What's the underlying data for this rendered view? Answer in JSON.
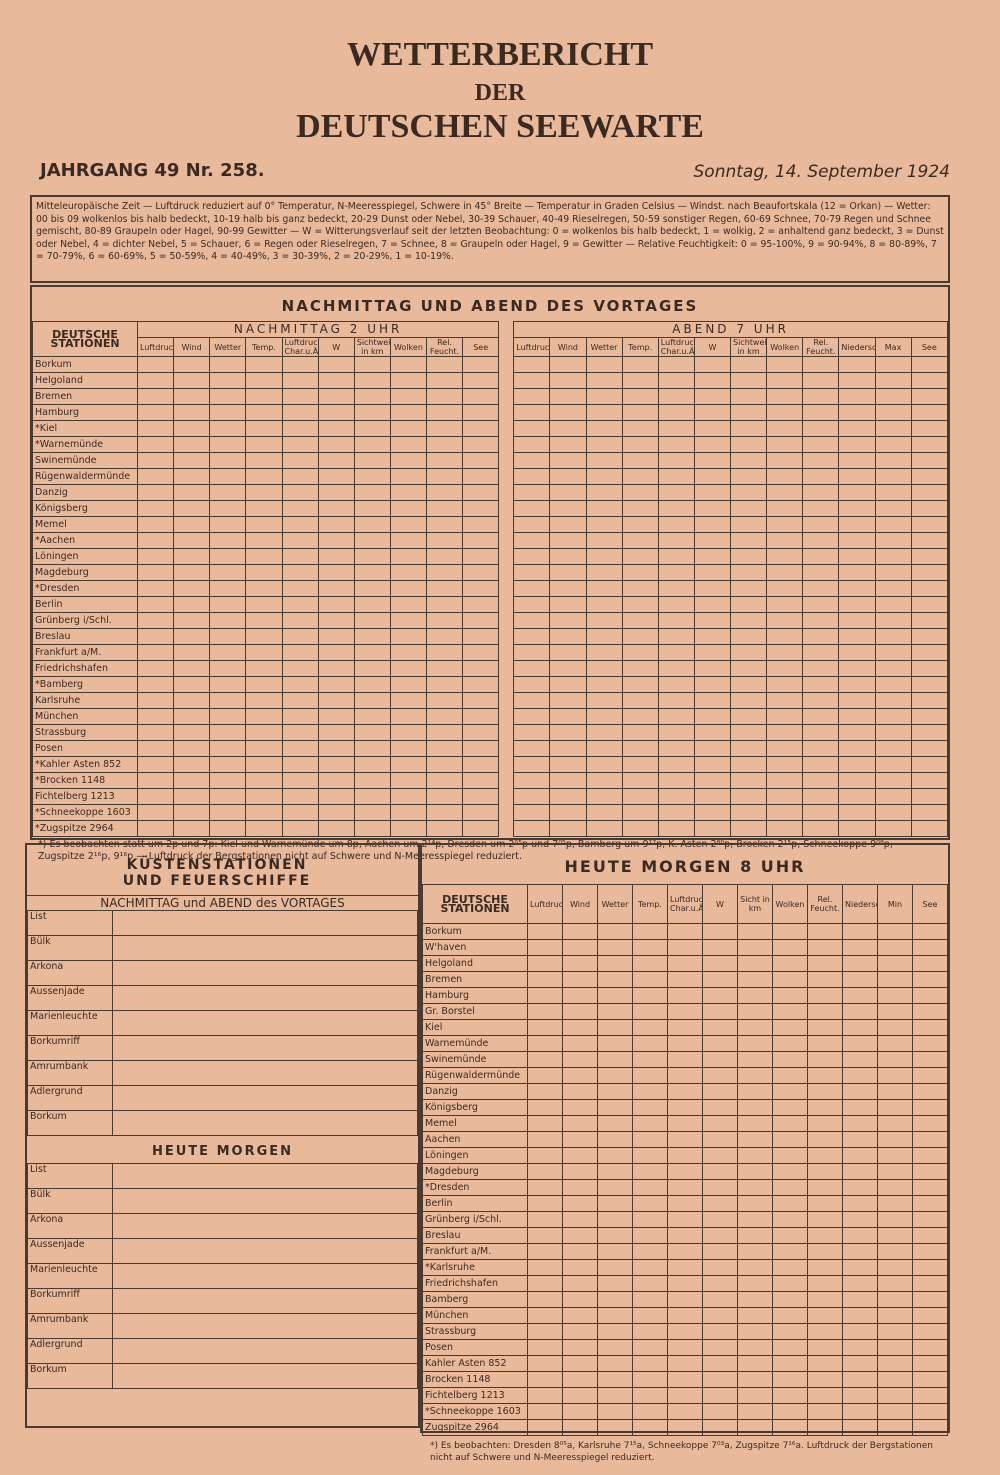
{
  "header": {
    "title": "WETTERBERICHT",
    "subtitle": "DER",
    "title2": "DEUTSCHEN SEEWARTE",
    "issue": "JAHRGANG 49 Nr. 258.",
    "date": "Sonntag, 14. September 1924"
  },
  "legend": "Mitteleuropäische Zeit — Luftdruck reduziert auf 0° Temperatur, N-Meeresspiegel, Schwere in 45° Breite — Temperatur in Graden Celsius — Windst. nach Beaufortskala (12 = Orkan) — Wetter: 00 bis 09 wolkenlos bis halb bedeckt, 10-19 halb bis ganz bedeckt, 20-29 Dunst oder Nebel, 30-39 Schauer, 40-49 Rieselregen, 50-59 sonstiger Regen, 60-69 Schnee, 70-79 Regen und Schnee gemischt, 80-89 Graupeln oder Hagel, 90-99 Gewitter — W = Witterungsverlauf seit der letzten Beobachtung: 0 = wolkenlos bis halb bedeckt, 1 = wolkig, 2 = anhaltend ganz bedeckt, 3 = Dunst oder Nebel, 4 = dichter Nebel, 5 = Schauer, 6 = Regen oder Rieselregen, 7 = Schnee, 8 = Graupeln oder Hagel, 9 = Gewitter — Relative Feuchtigkeit: 0 = 95-100%, 9 = 90-94%, 8 = 80-89%, 7 = 70-79%, 6 = 60-69%, 5 = 50-59%, 4 = 40-49%, 3 = 30-39%, 2 = 20-29%, 1 = 10-19%.",
  "vortag": {
    "title": "NACHMITTAG UND ABEND DES VORTAGES",
    "stations_header": "DEUTSCHE STATIONEN",
    "afternoon": "NACHMITTAG 2 UHR",
    "evening": "ABEND 7 UHR",
    "afternoon_columns": [
      "Luftdruck",
      "Wind",
      "Wetter",
      "Temp.",
      "Luftdruck Char.u.Änd.",
      "W",
      "Sichtweite in km",
      "Wolken",
      "Rel. Feucht.",
      "See"
    ],
    "evening_columns": [
      "Luftdruck",
      "Wind",
      "Wetter",
      "Temp.",
      "Luftdruck Char.u.Änd.",
      "W",
      "Sichtweite in km",
      "Wolken",
      "Rel. Feucht.",
      "Niederschlag",
      "Max",
      "See"
    ],
    "stations": [
      "Borkum",
      "Helgoland",
      "Bremen",
      "Hamburg",
      "*Kiel",
      "*Warnemünde",
      "Swinemünde",
      "Rügenwaldermünde",
      "Danzig",
      "Königsberg",
      "Memel",
      "*Aachen",
      "Löningen",
      "Magdeburg",
      "*Dresden",
      "Berlin",
      "Grünberg i/Schl.",
      "Breslau",
      "Frankfurt a/M.",
      "Friedrichshafen",
      "*Bamberg",
      "Karlsruhe",
      "München",
      "Strassburg",
      "Posen",
      "*Kahler Asten 852",
      "*Brocken 1148",
      "Fichtelberg 1213",
      "*Schneekoppe 1603",
      "*Zugspitze 2964"
    ],
    "footnote": "*) Es beobachten statt um 2p und 7p: Kiel und Warnemünde um 8p, Aachen um 2¹⁴p, Dresden um 2⁰⁵p und 7⁰⁵p, Bamberg um 9¹⁷p, K. Asten 2⁸⁰p, Brocken 2¹⁵p, Schneekoppe 9⁰⁸p, Zugspitze 2¹⁶p, 9¹⁶p — Luftdruck der Bergstationen nicht auf Schwere und N-Meeresspiegel reduziert."
  },
  "kuesten": {
    "title": "KÜSTENSTATIONEN UND FEUERSCHIFFE",
    "sub1": "NACHMITTAG und ABEND des VORTAGES",
    "stations1": [
      "List",
      "Bülk",
      "Arkona",
      "Aussenjade",
      "Marienleuchte",
      "Borkumriff",
      "Amrumbank",
      "Adlergrund",
      "Borkum"
    ],
    "sub2": "HEUTE MORGEN",
    "stations2": [
      "List",
      "Bülk",
      "Arkona",
      "Aussenjade",
      "Marienleuchte",
      "Borkumriff",
      "Amrumbank",
      "Adlergrund",
      "Borkum"
    ]
  },
  "morgen": {
    "title": "HEUTE MORGEN 8 UHR",
    "stations_header": "DEUTSCHE STATIONEN",
    "columns": [
      "Luftdruck",
      "Wind",
      "Wetter",
      "Temp.",
      "Luftdruck Char.u.Änd.",
      "W",
      "Sicht in km",
      "Wolken",
      "Rel. Feucht.",
      "Niederschlag",
      "Min",
      "See"
    ],
    "stations": [
      "Borkum",
      "W'haven",
      "Helgoland",
      "Bremen",
      "Hamburg",
      "Gr. Borstel",
      "Kiel",
      "Warnemünde",
      "Swinemünde",
      "Rügenwaldermünde",
      "Danzig",
      "Königsberg",
      "Memel",
      "Aachen",
      "Löningen",
      "Magdeburg",
      "*Dresden",
      "Berlin",
      "Grünberg i/Schl.",
      "Breslau",
      "Frankfurt a/M.",
      "*Karlsruhe",
      "Friedrichshafen",
      "Bamberg",
      "München",
      "Strassburg",
      "Posen",
      "Kahler Asten 852",
      "Brocken 1148",
      "Fichtelberg 1213",
      "*Schneekoppe 1603",
      "Zugspitze 2964"
    ],
    "footnote": "*) Es beobachten: Dresden 8⁰⁵a, Karlsruhe 7¹⁵a, Schneekoppe 7⁰³a, Zugspitze 7¹⁶a. Luftdruck der Bergstationen nicht auf Schwere und N-Meeresspiegel reduziert."
  }
}
